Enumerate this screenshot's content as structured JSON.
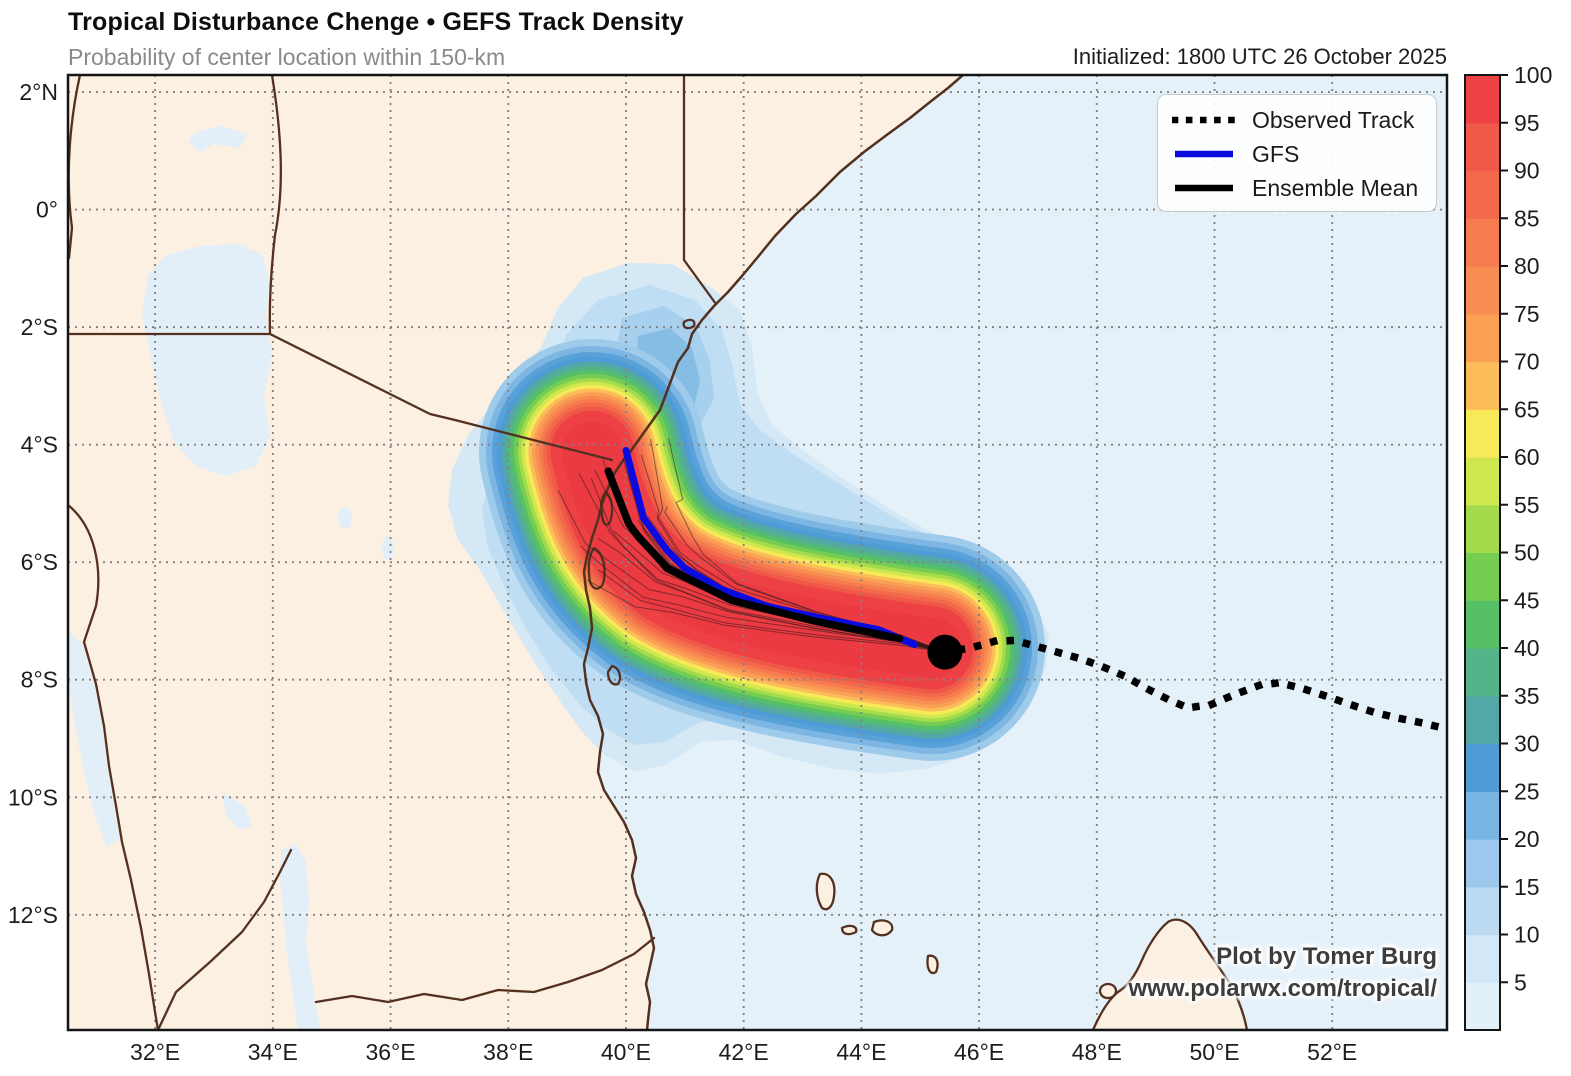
{
  "header": {
    "title": "Tropical Disturbance Chenge • GEFS Track Density",
    "subtitle": "Probability of center location within 150-km",
    "initialized": "Initialized: 1800 UTC 26 October 2025"
  },
  "legend": {
    "items": [
      {
        "label": "Observed Track",
        "style": "dotted",
        "color": "#000000"
      },
      {
        "label": "GFS",
        "style": "solid",
        "color": "#0b0bdf"
      },
      {
        "label": "Ensemble Mean",
        "style": "solid",
        "color": "#000000"
      }
    ]
  },
  "attribution": {
    "line1": "Plot by Tomer Burg",
    "line2": "www.polarwx.com/tropical/"
  },
  "chart_data": {
    "type": "heatmap",
    "proj": {
      "lon_min": 30.52,
      "lon_max": 53.95,
      "lat_max": 2.29,
      "lat_min": -13.96
    },
    "x_ticks": {
      "lons": [
        32,
        34,
        36,
        38,
        40,
        42,
        44,
        46,
        48,
        50,
        52
      ],
      "labels": [
        "32°E",
        "34°E",
        "36°E",
        "38°E",
        "40°E",
        "42°E",
        "44°E",
        "46°E",
        "48°E",
        "50°E",
        "52°E"
      ]
    },
    "y_ticks": {
      "lats": [
        2,
        0,
        -2,
        -4,
        -6,
        -8,
        -10,
        -12
      ],
      "labels": [
        "2°N",
        "0°",
        "2°S",
        "4°S",
        "6°S",
        "8°S",
        "10°S",
        "12°S"
      ]
    },
    "colorbar": {
      "levels": [
        5,
        10,
        15,
        20,
        25,
        30,
        35,
        40,
        45,
        50,
        55,
        60,
        65,
        70,
        75,
        80,
        85,
        90,
        95,
        100
      ],
      "cell_colors_bottom_to_top": [
        "#e2f0fa",
        "#d2e7f7",
        "#bbdaf2",
        "#9bc8ec",
        "#79b5e3",
        "#4f9bd6",
        "#53a7a7",
        "#54b388",
        "#55c068",
        "#75cd52",
        "#a3db4d",
        "#cfe84f",
        "#f7e957",
        "#fbbc59",
        "#faa055",
        "#f88d52",
        "#f67b4e",
        "#f3694b",
        "#f05848",
        "#ed4145"
      ]
    },
    "tracks": {
      "current_position": [
        45.42,
        -7.53
      ],
      "observed": [
        [
          45.42,
          -7.53
        ],
        [
          45.85,
          -7.46
        ],
        [
          46.25,
          -7.35
        ],
        [
          46.6,
          -7.33
        ],
        [
          47.0,
          -7.44
        ],
        [
          47.4,
          -7.55
        ],
        [
          47.75,
          -7.65
        ],
        [
          48.1,
          -7.78
        ],
        [
          48.5,
          -7.95
        ],
        [
          48.85,
          -8.15
        ],
        [
          49.2,
          -8.33
        ],
        [
          49.55,
          -8.48
        ],
        [
          49.95,
          -8.42
        ],
        [
          50.35,
          -8.25
        ],
        [
          50.75,
          -8.1
        ],
        [
          51.1,
          -8.05
        ],
        [
          51.5,
          -8.15
        ],
        [
          51.9,
          -8.28
        ],
        [
          52.3,
          -8.42
        ],
        [
          52.7,
          -8.55
        ],
        [
          53.1,
          -8.65
        ],
        [
          53.5,
          -8.73
        ],
        [
          53.88,
          -8.82
        ]
      ],
      "gfs": [
        [
          40.0,
          -4.1
        ],
        [
          40.3,
          -5.25
        ],
        [
          40.7,
          -5.8
        ],
        [
          41.0,
          -6.1
        ],
        [
          41.6,
          -6.45
        ],
        [
          42.4,
          -6.75
        ],
        [
          43.3,
          -6.95
        ],
        [
          44.3,
          -7.15
        ],
        [
          44.9,
          -7.4
        ]
      ],
      "ensemble_mean": [
        [
          39.7,
          -4.45
        ],
        [
          40.05,
          -5.35
        ],
        [
          40.2,
          -5.55
        ],
        [
          40.7,
          -6.1
        ],
        [
          41.1,
          -6.3
        ],
        [
          41.8,
          -6.65
        ],
        [
          43.2,
          -7.0
        ],
        [
          44.65,
          -7.3
        ]
      ]
    },
    "ensemble_members": {
      "count": 20,
      "offsets": [
        -70,
        -56,
        -44,
        -34,
        -26,
        -19,
        -13,
        -8,
        -4,
        0,
        4,
        9,
        15,
        22,
        30,
        40,
        52,
        66,
        82,
        100
      ],
      "lengths": [
        1.06,
        0.97,
        1.1,
        1.02,
        0.94,
        1.05,
        1.0,
        0.9,
        1.08,
        1.0,
        0.96,
        1.04,
        0.92,
        1.0,
        1.06,
        0.95,
        1.0,
        0.9,
        0.84,
        0.78
      ]
    },
    "density_rings": {
      "widths": [
        226,
        212,
        200,
        190,
        181,
        172,
        164,
        156,
        148,
        141,
        134,
        127,
        120,
        113,
        106,
        99,
        91,
        83,
        60
      ],
      "colors": [
        "#9fcbeb",
        "#7db5e3",
        "#58a2d9",
        "#4f9bd6",
        "#53a7a7",
        "#54b388",
        "#55c068",
        "#75cd52",
        "#a3db4d",
        "#cfe84f",
        "#f7e957",
        "#fbbc59",
        "#faa055",
        "#f88d52",
        "#f67b4e",
        "#f3694b",
        "#f05848",
        "#ed4145",
        "#eb3a42"
      ]
    }
  }
}
